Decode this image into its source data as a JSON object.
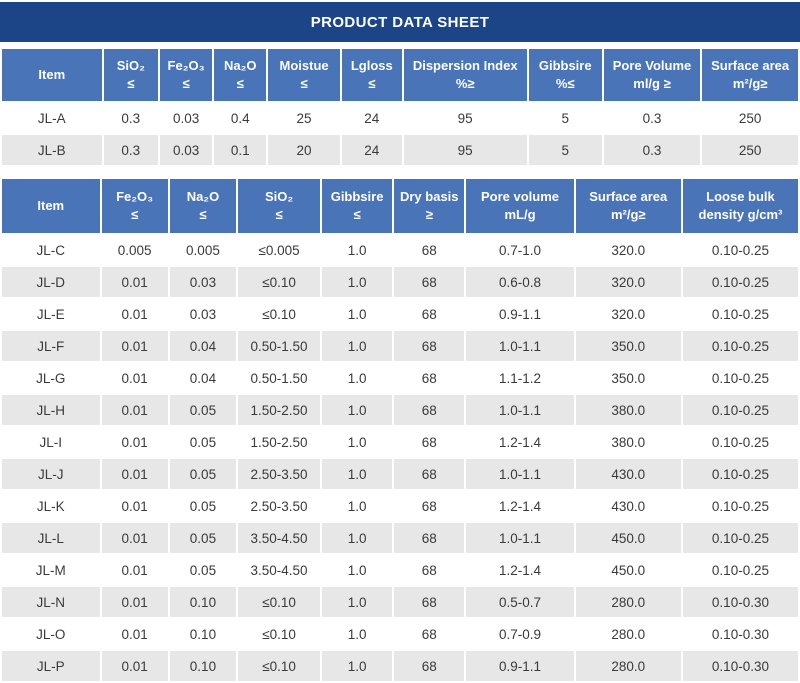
{
  "page": {
    "title": "PRODUCT DATA SHEET"
  },
  "colors": {
    "title_bar": "#1c4587",
    "header_blue": "#4a74b8",
    "alt_row": "#e7e7e7",
    "text": "#3a3a3a"
  },
  "table1": {
    "headers": [
      {
        "l1": "Item",
        "l2": ""
      },
      {
        "l1": "SiO₂",
        "l2": "≤"
      },
      {
        "l1": "Fe₂O₃",
        "l2": "≤"
      },
      {
        "l1": "Na₂O",
        "l2": "≤"
      },
      {
        "l1": "Moistue",
        "l2": "≤"
      },
      {
        "l1": "Lgloss",
        "l2": "≤"
      },
      {
        "l1": "Dispersion Index",
        "l2": "%≥"
      },
      {
        "l1": "Gibbsire",
        "l2": "%≤"
      },
      {
        "l1": "Pore Volume",
        "l2": "ml/g ≥"
      },
      {
        "l1": "Surface area",
        "l2": "m²/g≥"
      }
    ],
    "rows": [
      [
        "JL-A",
        "0.3",
        "0.03",
        "0.4",
        "25",
        "24",
        "95",
        "5",
        "0.3",
        "250"
      ],
      [
        "JL-B",
        "0.3",
        "0.03",
        "0.1",
        "20",
        "24",
        "95",
        "5",
        "0.3",
        "250"
      ]
    ]
  },
  "table2": {
    "headers": [
      {
        "l1": "Item",
        "l2": ""
      },
      {
        "l1": "Fe₂O₃",
        "l2": "≤"
      },
      {
        "l1": "Na₂O",
        "l2": "≤"
      },
      {
        "l1": "SiO₂",
        "l2": "≤"
      },
      {
        "l1": "Gibbsire",
        "l2": "≤"
      },
      {
        "l1": "Dry basis",
        "l2": "≥"
      },
      {
        "l1": "Pore volume",
        "l2": "mL/g"
      },
      {
        "l1": "Surface area",
        "l2": "m²/g≥"
      },
      {
        "l1": "Loose bulk",
        "l2": "density g/cm³"
      }
    ],
    "rows": [
      [
        "JL-C",
        "0.005",
        "0.005",
        "≤0.005",
        "1.0",
        "68",
        "0.7-1.0",
        "320.0",
        "0.10-0.25"
      ],
      [
        "JL-D",
        "0.01",
        "0.03",
        "≤0.10",
        "1.0",
        "68",
        "0.6-0.8",
        "320.0",
        "0.10-0.25"
      ],
      [
        "JL-E",
        "0.01",
        "0.03",
        "≤0.10",
        "1.0",
        "68",
        "0.9-1.1",
        "320.0",
        "0.10-0.25"
      ],
      [
        "JL-F",
        "0.01",
        "0.04",
        "0.50-1.50",
        "1.0",
        "68",
        "1.0-1.1",
        "350.0",
        "0.10-0.25"
      ],
      [
        "JL-G",
        "0.01",
        "0.04",
        "0.50-1.50",
        "1.0",
        "68",
        "1.1-1.2",
        "350.0",
        "0.10-0.25"
      ],
      [
        "JL-H",
        "0.01",
        "0.05",
        "1.50-2.50",
        "1.0",
        "68",
        "1.0-1.1",
        "380.0",
        "0.10-0.25"
      ],
      [
        "JL-I",
        "0.01",
        "0.05",
        "1.50-2.50",
        "1.0",
        "68",
        "1.2-1.4",
        "380.0",
        "0.10-0.25"
      ],
      [
        "JL-J",
        "0.01",
        "0.05",
        "2.50-3.50",
        "1.0",
        "68",
        "1.0-1.1",
        "430.0",
        "0.10-0.25"
      ],
      [
        "JL-K",
        "0.01",
        "0.05",
        "2.50-3.50",
        "1.0",
        "68",
        "1.2-1.4",
        "430.0",
        "0.10-0.25"
      ],
      [
        "JL-L",
        "0.01",
        "0.05",
        "3.50-4.50",
        "1.0",
        "68",
        "1.0-1.1",
        "450.0",
        "0.10-0.25"
      ],
      [
        "JL-M",
        "0.01",
        "0.05",
        "3.50-4.50",
        "1.0",
        "68",
        "1.2-1.4",
        "450.0",
        "0.10-0.25"
      ],
      [
        "JL-N",
        "0.01",
        "0.10",
        "≤0.10",
        "1.0",
        "68",
        "0.5-0.7",
        "280.0",
        "0.10-0.30"
      ],
      [
        "JL-O",
        "0.01",
        "0.10",
        "≤0.10",
        "1.0",
        "68",
        "0.7-0.9",
        "280.0",
        "0.10-0.30"
      ],
      [
        "JL-P",
        "0.01",
        "0.10",
        "≤0.10",
        "1.0",
        "68",
        "0.9-1.1",
        "280.0",
        "0.10-0.30"
      ]
    ]
  }
}
